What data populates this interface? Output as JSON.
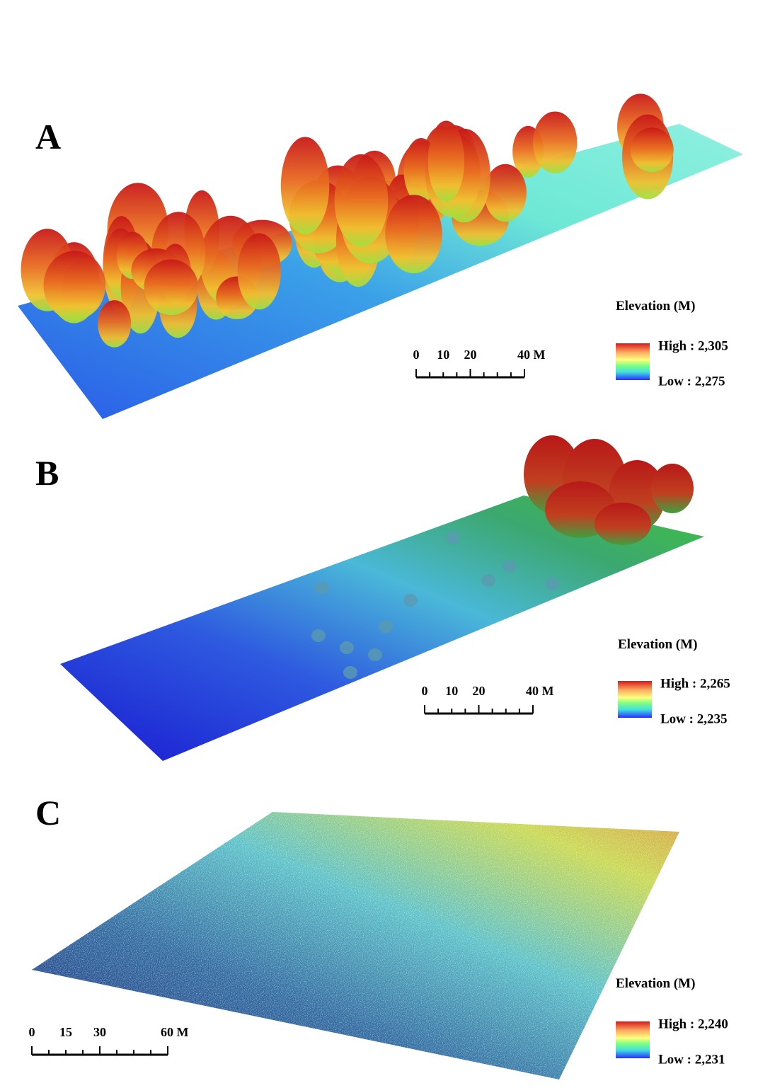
{
  "panels": [
    {
      "label": "A",
      "legend": {
        "title": "Elevation (M)",
        "high": "High : 2,305",
        "low": "Low : 2,275"
      },
      "scale_bar": {
        "ticks": [
          "0",
          "10",
          "20",
          "40 M"
        ]
      }
    },
    {
      "label": "B",
      "legend": {
        "title": "Elevation (M)",
        "high": "High : 2,265",
        "low": "Low : 2,235"
      },
      "scale_bar": {
        "ticks": [
          "0",
          "10",
          "20",
          "40 M"
        ]
      }
    },
    {
      "label": "C",
      "legend": {
        "title": "Elevation (M)",
        "high": "High : 2,240",
        "low": "Low : 2,231"
      },
      "scale_bar": {
        "ticks": [
          "0",
          "15",
          "30",
          "60 M"
        ]
      }
    }
  ]
}
